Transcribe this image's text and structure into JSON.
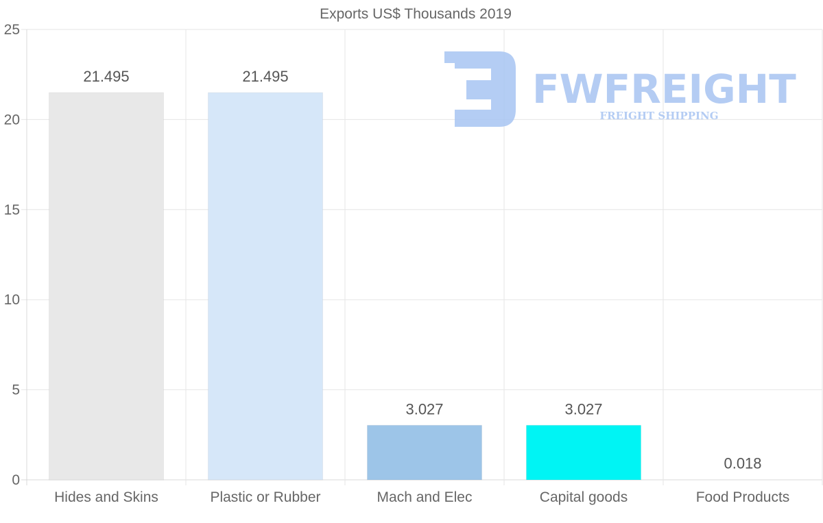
{
  "watermark": {
    "brand": "FWFREIGHT",
    "tagline": "FREIGHT SHIPPING",
    "color": "#a7c4f2"
  },
  "chart_data": {
    "type": "bar",
    "title": "Exports US$ Thousands 2019",
    "xlabel": "",
    "ylabel": "",
    "ylim": [
      0,
      25
    ],
    "yticks": [
      0,
      5,
      10,
      15,
      20,
      25
    ],
    "grid": true,
    "legend": "none",
    "categories": [
      "Hides and Skins",
      "Plastic or Rubber",
      "Mach and Elec",
      "Capital goods",
      "Food Products"
    ],
    "values": [
      21.495,
      21.495,
      3.027,
      3.027,
      0.018
    ],
    "value_labels": [
      "21.495",
      "21.495",
      "3.027",
      "3.027",
      "0.018"
    ],
    "colors": [
      "#e8e8e8",
      "#d6e7f9",
      "#9dc5e8",
      "#00f4f4",
      "#e8e8e8"
    ]
  }
}
